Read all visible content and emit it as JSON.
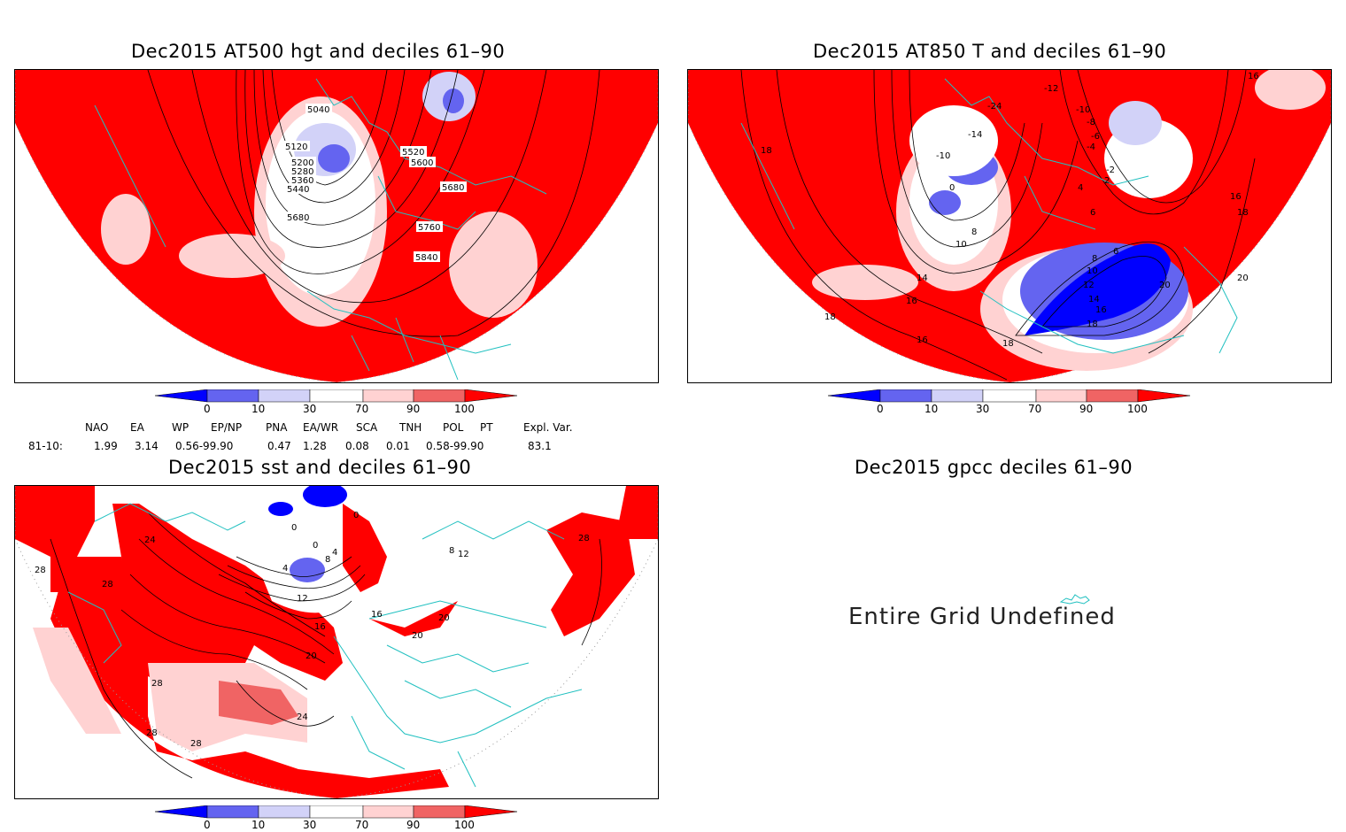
{
  "panels": [
    {
      "title": "Dec2015 AT500 hgt and deciles 61–90",
      "contour_labels": [
        "5040",
        "5120",
        "5200",
        "5280",
        "5360",
        "5440",
        "5520",
        "5600",
        "5680",
        "5680",
        "5760",
        "5840"
      ]
    },
    {
      "title": "Dec2015 AT850 T and deciles 61–90",
      "contour_labels": [
        "-12",
        "-10",
        "-8",
        "-6",
        "-4",
        "-2",
        "0",
        "2",
        "4",
        "6",
        "8",
        "10",
        "14",
        "16",
        "18",
        "16",
        "18",
        "20",
        "20",
        "6",
        "8",
        "10",
        "12",
        "14",
        "16",
        "18",
        "-24",
        "-14",
        "-10",
        "16",
        "18",
        "16",
        "18"
      ]
    },
    {
      "title": "Dec2015 sst and deciles 61–90",
      "contour_labels": [
        "24",
        "28",
        "28",
        "28",
        "28",
        "28",
        "28",
        "0",
        "0",
        "4",
        "4",
        "8",
        "12",
        "16",
        "20",
        "24",
        "16",
        "20",
        "20",
        "8",
        "12",
        "0"
      ]
    },
    {
      "title": "Dec2015 gpcc deciles 61–90",
      "message": "Entire Grid Undefined"
    }
  ],
  "colorbar": {
    "ticks": [
      "0",
      "10",
      "30",
      "70",
      "90",
      "100"
    ],
    "colors": [
      "#0000ff",
      "#6464f0",
      "#d2d2f8",
      "#ffffff",
      "#ffd2d2",
      "#f06464",
      "#ff0000"
    ]
  },
  "indices": {
    "headers": [
      "NAO",
      "EA",
      "WP",
      "EP/NP",
      "PNA",
      "EA/WR",
      "SCA",
      "TNH",
      "POL",
      "PT",
      "Expl. Var."
    ],
    "row_label": "81-10:",
    "values": [
      "1.99",
      "3.14",
      "0.56-99.90",
      "0.47",
      "1.28",
      "0.08",
      "0.01",
      "0.58-99.90",
      "83.1"
    ]
  }
}
